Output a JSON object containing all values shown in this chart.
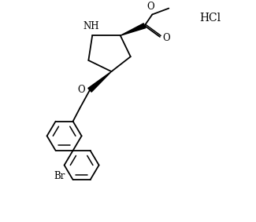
{
  "background_color": "#ffffff",
  "line_color": "#000000",
  "line_width": 1.3,
  "fig_width": 3.25,
  "fig_height": 2.83,
  "dpi": 100,
  "HCl_text": "HCl",
  "NH_text": "NH",
  "Br_text": "Br",
  "O_carbonyl_text": "O",
  "O_ester_text": "O",
  "O_link_text": "O"
}
